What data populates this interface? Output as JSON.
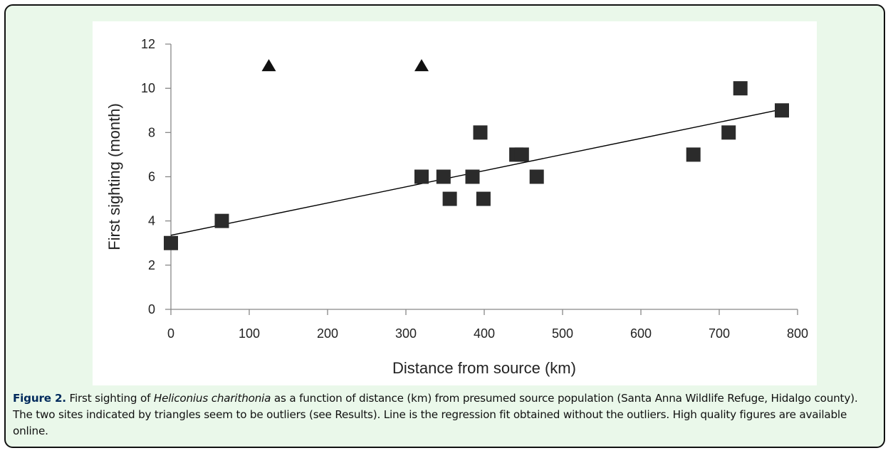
{
  "chart_data": {
    "type": "scatter",
    "xlabel": "Distance from source (km)",
    "ylabel": "First sighting (month)",
    "xlim": [
      0,
      800
    ],
    "ylim": [
      0,
      12
    ],
    "x_ticks": [
      0,
      100,
      200,
      300,
      400,
      500,
      600,
      700,
      800
    ],
    "y_ticks": [
      0,
      2,
      4,
      6,
      8,
      10,
      12
    ],
    "grid": false,
    "legend": "none",
    "series": [
      {
        "marker": "square",
        "color": "#2b2b2b",
        "points": [
          {
            "x": 0,
            "y": 3
          },
          {
            "x": 65,
            "y": 4
          },
          {
            "x": 320,
            "y": 6
          },
          {
            "x": 348,
            "y": 6
          },
          {
            "x": 356,
            "y": 5
          },
          {
            "x": 385,
            "y": 6
          },
          {
            "x": 395,
            "y": 8
          },
          {
            "x": 399,
            "y": 5
          },
          {
            "x": 441,
            "y": 7
          },
          {
            "x": 448,
            "y": 7
          },
          {
            "x": 467,
            "y": 6
          },
          {
            "x": 667,
            "y": 7
          },
          {
            "x": 712,
            "y": 8
          },
          {
            "x": 727,
            "y": 10
          },
          {
            "x": 780,
            "y": 9
          }
        ]
      },
      {
        "marker": "triangle",
        "color": "#111111",
        "points": [
          {
            "x": 125,
            "y": 11
          },
          {
            "x": 320,
            "y": 11
          }
        ]
      }
    ],
    "regression_line": {
      "x": [
        0,
        780
      ],
      "y": [
        3.35,
        9.05
      ]
    }
  },
  "caption": {
    "label": "Figure 2.",
    "text_before": " First sighting of ",
    "species": "Heliconius charithonia",
    "text_after": " as a function of distance (km) from presumed source population (Santa Anna Wildlife Refuge, Hidalgo county). The two sites indicated by triangles seem to be outliers (see Results). Line is the regression fit obtained without the outliers. High quality figures are available online."
  },
  "colors": {
    "frame_background": "#eaf8ea",
    "caption_label": "#002a5c"
  }
}
